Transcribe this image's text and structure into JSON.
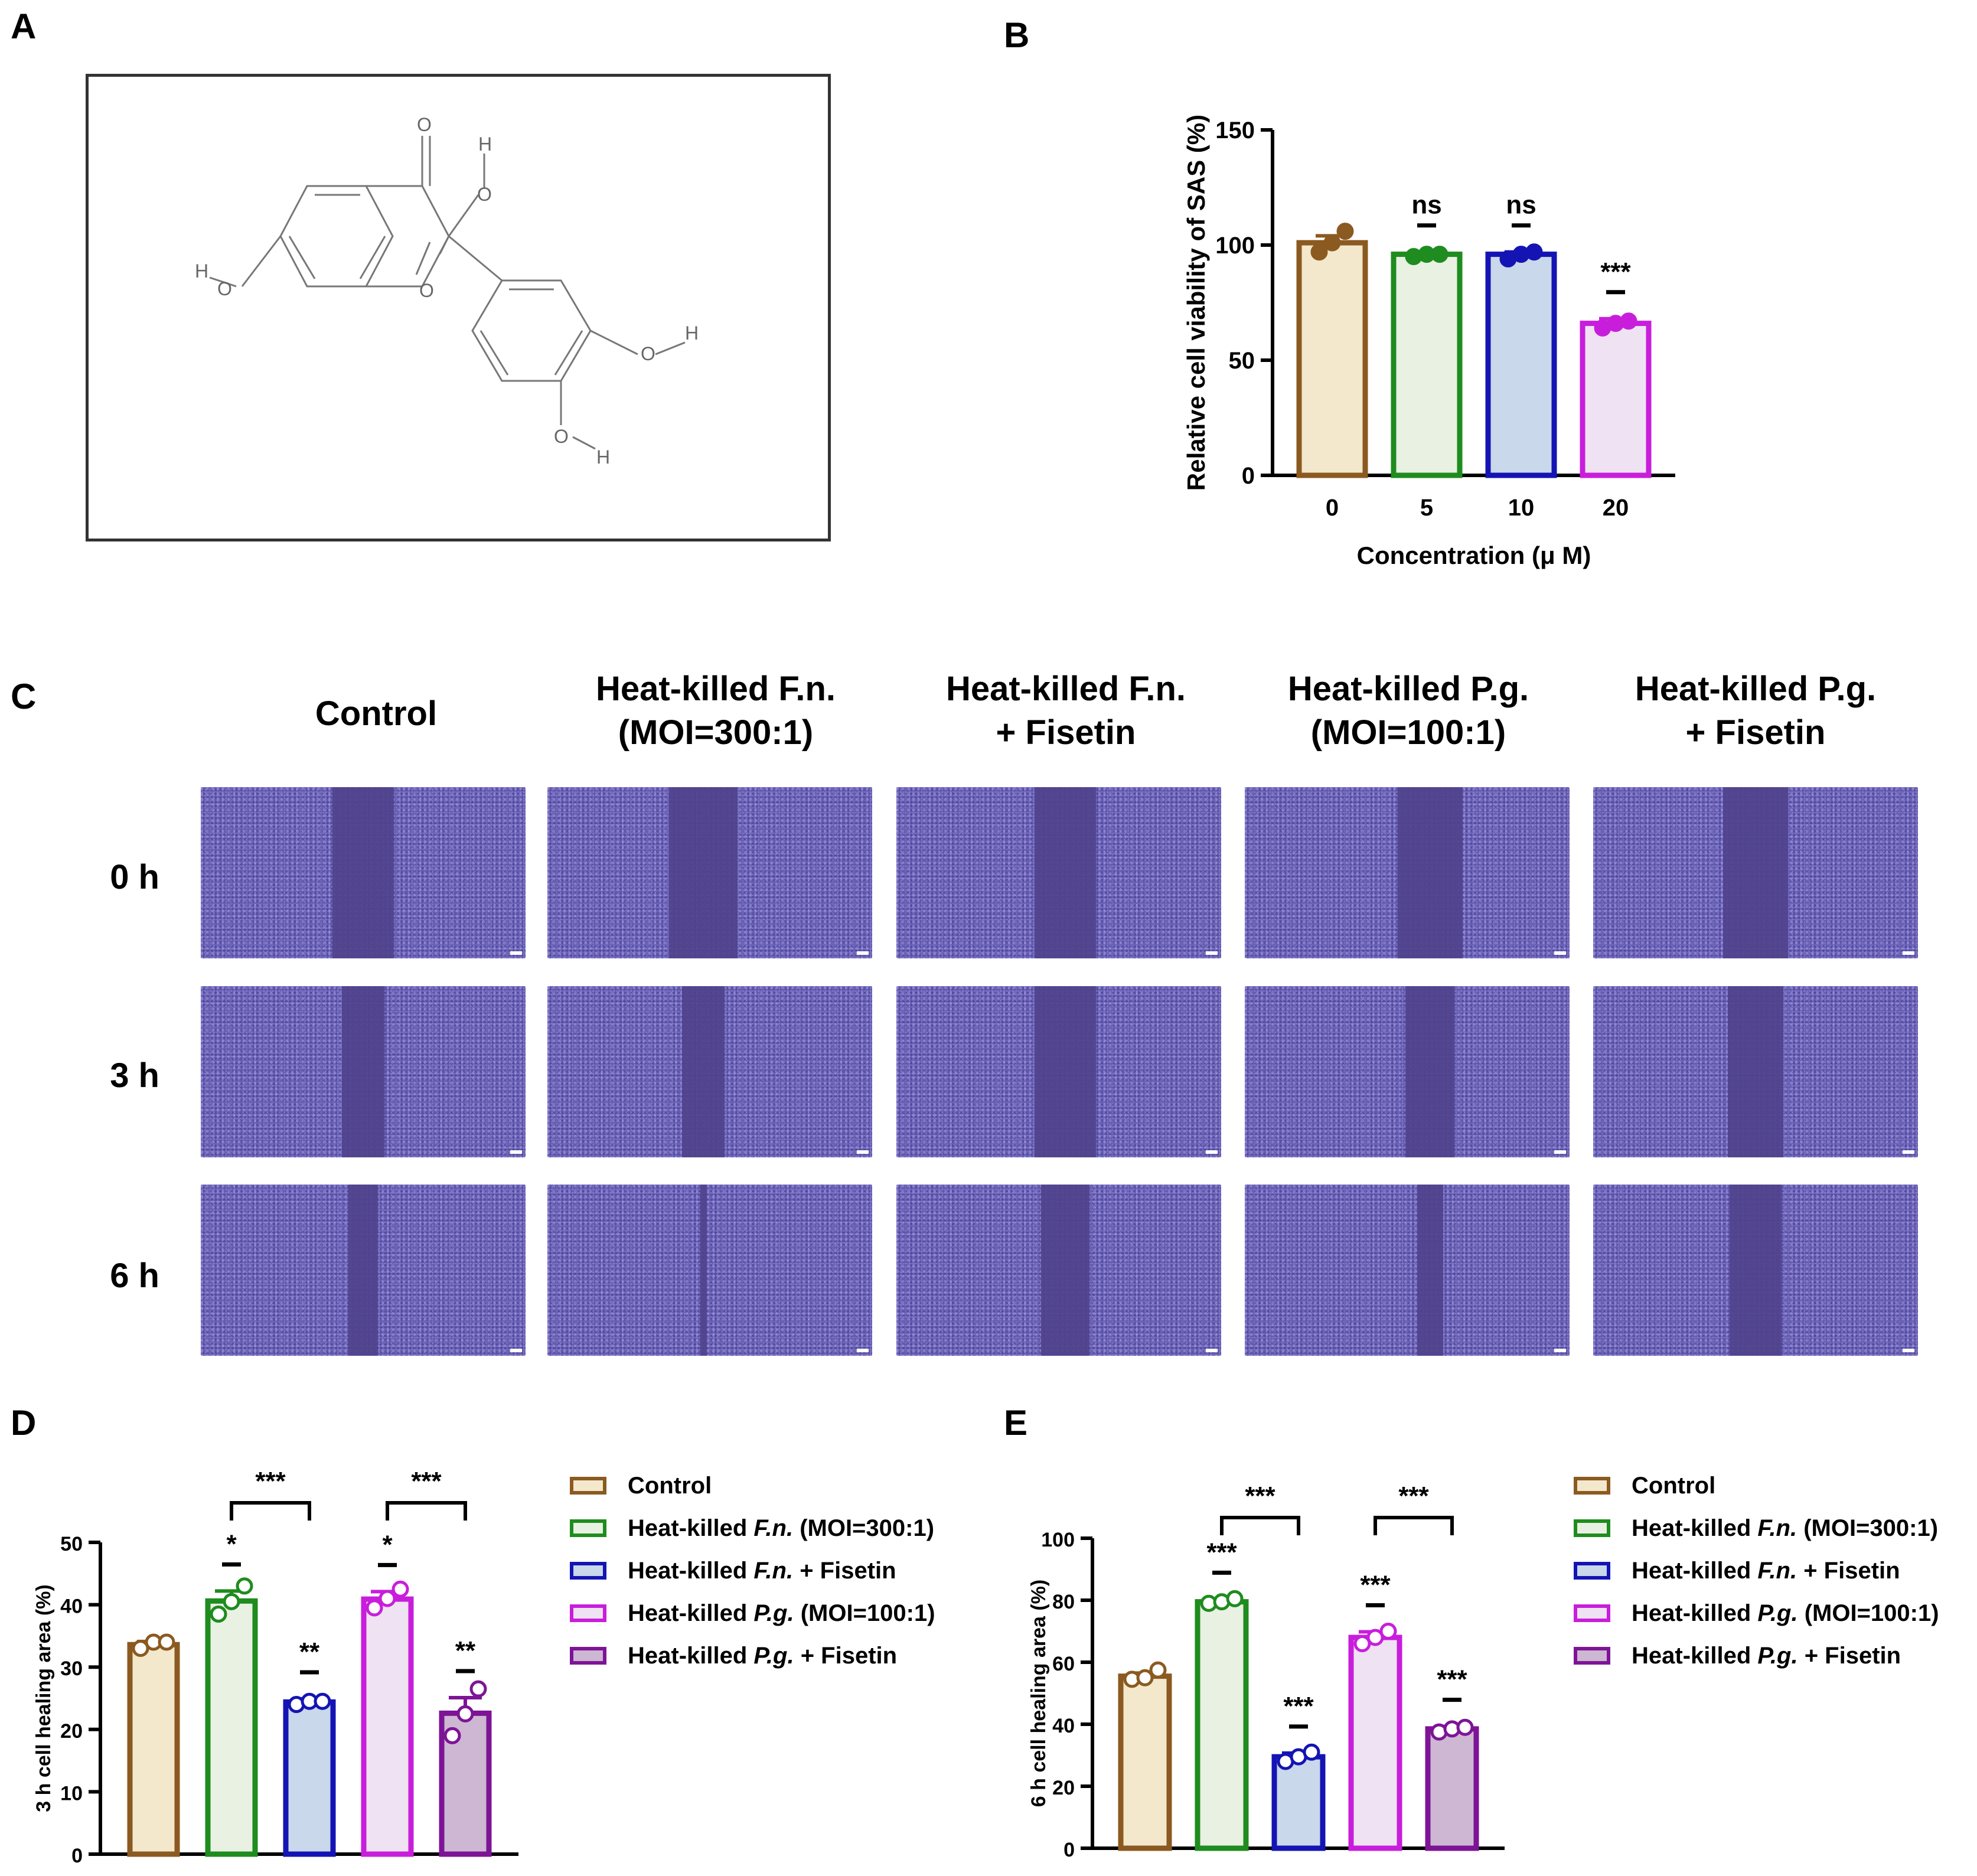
{
  "panels": {
    "A": "A",
    "B": "B",
    "C": "C",
    "D": "D",
    "E": "E"
  },
  "molecule": {
    "atoms": [
      "O",
      "H",
      "O",
      "H",
      "O",
      "O",
      "H",
      "O",
      "H"
    ]
  },
  "colors": {
    "control": "#8b5a20",
    "control_fill": "#f3e8cc",
    "fn": "#1e8c1e",
    "fn_fill": "#e9f1e3",
    "fn_fis": "#1414b4",
    "fn_fis_fill": "#c9d8ea",
    "pg": "#c81edc",
    "pg_fill": "#efe3f3",
    "pg_fis": "#7d1496",
    "pg_fis_fill": "#cdb7d3"
  },
  "chart_data": [
    {
      "id": "B",
      "type": "bar",
      "title": "",
      "xlabel": "Concentration (μ M)",
      "ylabel": "Relative cell viability of SAS (%)",
      "categories": [
        "0",
        "5",
        "10",
        "20"
      ],
      "values": [
        101,
        96,
        96,
        66
      ],
      "errors": [
        3,
        1,
        1,
        2
      ],
      "points": [
        [
          97,
          101,
          106
        ],
        [
          95,
          96,
          96
        ],
        [
          94,
          96,
          97
        ],
        [
          64,
          66,
          67
        ]
      ],
      "significance": [
        "",
        "ns",
        "ns",
        "***"
      ],
      "ylim": [
        0,
        150
      ],
      "yticks": [
        0,
        50,
        100,
        150
      ]
    },
    {
      "id": "D",
      "type": "bar",
      "xlabel": "",
      "ylabel": "3 h cell healing area (%)",
      "categories": [
        "Control",
        "Heat-killed F.n. (MOI=300:1)",
        "Heat-killed F.n. + Fisetin",
        "Heat-killed P.g. (MOI=100:1)",
        "Heat-killed P.g. + Fisetin"
      ],
      "values": [
        33.6,
        40.6,
        24.4,
        40.9,
        22.6
      ],
      "errors": [
        0.5,
        1.6,
        0.5,
        1.2,
        2.5
      ],
      "points": [
        [
          33,
          34,
          34
        ],
        [
          38.5,
          40.5,
          43
        ],
        [
          24,
          24.5,
          24.5
        ],
        [
          39.5,
          41,
          42.5
        ],
        [
          19,
          22.5,
          26.5
        ]
      ],
      "significance": [
        "",
        "*",
        "**",
        "*",
        "**"
      ],
      "brackets": [
        {
          "from": 1,
          "to": 2,
          "label": "***"
        },
        {
          "from": 3,
          "to": 4,
          "label": "***"
        }
      ],
      "ylim": [
        0,
        50
      ],
      "yticks": [
        0,
        10,
        20,
        30,
        40,
        50
      ]
    },
    {
      "id": "E",
      "type": "bar",
      "xlabel": "",
      "ylabel": "6 h cell healing area (%)",
      "categories": [
        "Control",
        "Heat-killed F.n. (MOI=300:1)",
        "Heat-killed F.n. + Fisetin",
        "Heat-killed P.g. (MOI=100:1)",
        "Heat-killed P.g. + Fisetin"
      ],
      "values": [
        55.5,
        79.5,
        29.5,
        68,
        38.5
      ],
      "errors": [
        1,
        0.8,
        1.2,
        1.8,
        0.8
      ],
      "points": [
        [
          54.5,
          55,
          57.5
        ],
        [
          79,
          79.5,
          80.5
        ],
        [
          28,
          29.5,
          31
        ],
        [
          66,
          68,
          70
        ],
        [
          37.5,
          38.5,
          39
        ]
      ],
      "significance": [
        "",
        "***",
        "***",
        "***",
        "***"
      ],
      "brackets": [
        {
          "from": 1,
          "to": 2,
          "label": "***"
        },
        {
          "from": 3,
          "to": 4,
          "label": "***"
        }
      ],
      "ylim": [
        0,
        100
      ],
      "yticks": [
        0,
        20,
        40,
        60,
        80,
        100
      ]
    }
  ],
  "panel_c": {
    "columns": [
      {
        "line1": "Control",
        "line2": ""
      },
      {
        "line1": "Heat-killed F.n.",
        "line2": "(MOI=300:1)"
      },
      {
        "line1": "Heat-killed F.n.",
        "line2": "+ Fisetin"
      },
      {
        "line1": "Heat-killed P.g.",
        "line2": "(MOI=100:1)"
      },
      {
        "line1": "Heat-killed P.g.",
        "line2": "+ Fisetin"
      }
    ],
    "rows": [
      "0 h",
      "3 h",
      "6 h"
    ],
    "gap_fractions": [
      [
        0.19,
        0.21,
        0.19,
        0.2,
        0.2
      ],
      [
        0.13,
        0.13,
        0.19,
        0.15,
        0.17
      ],
      [
        0.09,
        0.02,
        0.15,
        0.08,
        0.16
      ]
    ]
  },
  "legend": {
    "items": [
      {
        "pre": "Control",
        "italic": "",
        "post": ""
      },
      {
        "pre": "Heat-killed ",
        "italic": "F.n.",
        "post": " (MOI=300:1)"
      },
      {
        "pre": "Heat-killed ",
        "italic": "F.n.",
        "post": " + Fisetin"
      },
      {
        "pre": "Heat-killed ",
        "italic": "P.g.",
        "post": " (MOI=100:1)"
      },
      {
        "pre": "Heat-killed ",
        "italic": "P.g.",
        "post": " + Fisetin"
      }
    ]
  }
}
